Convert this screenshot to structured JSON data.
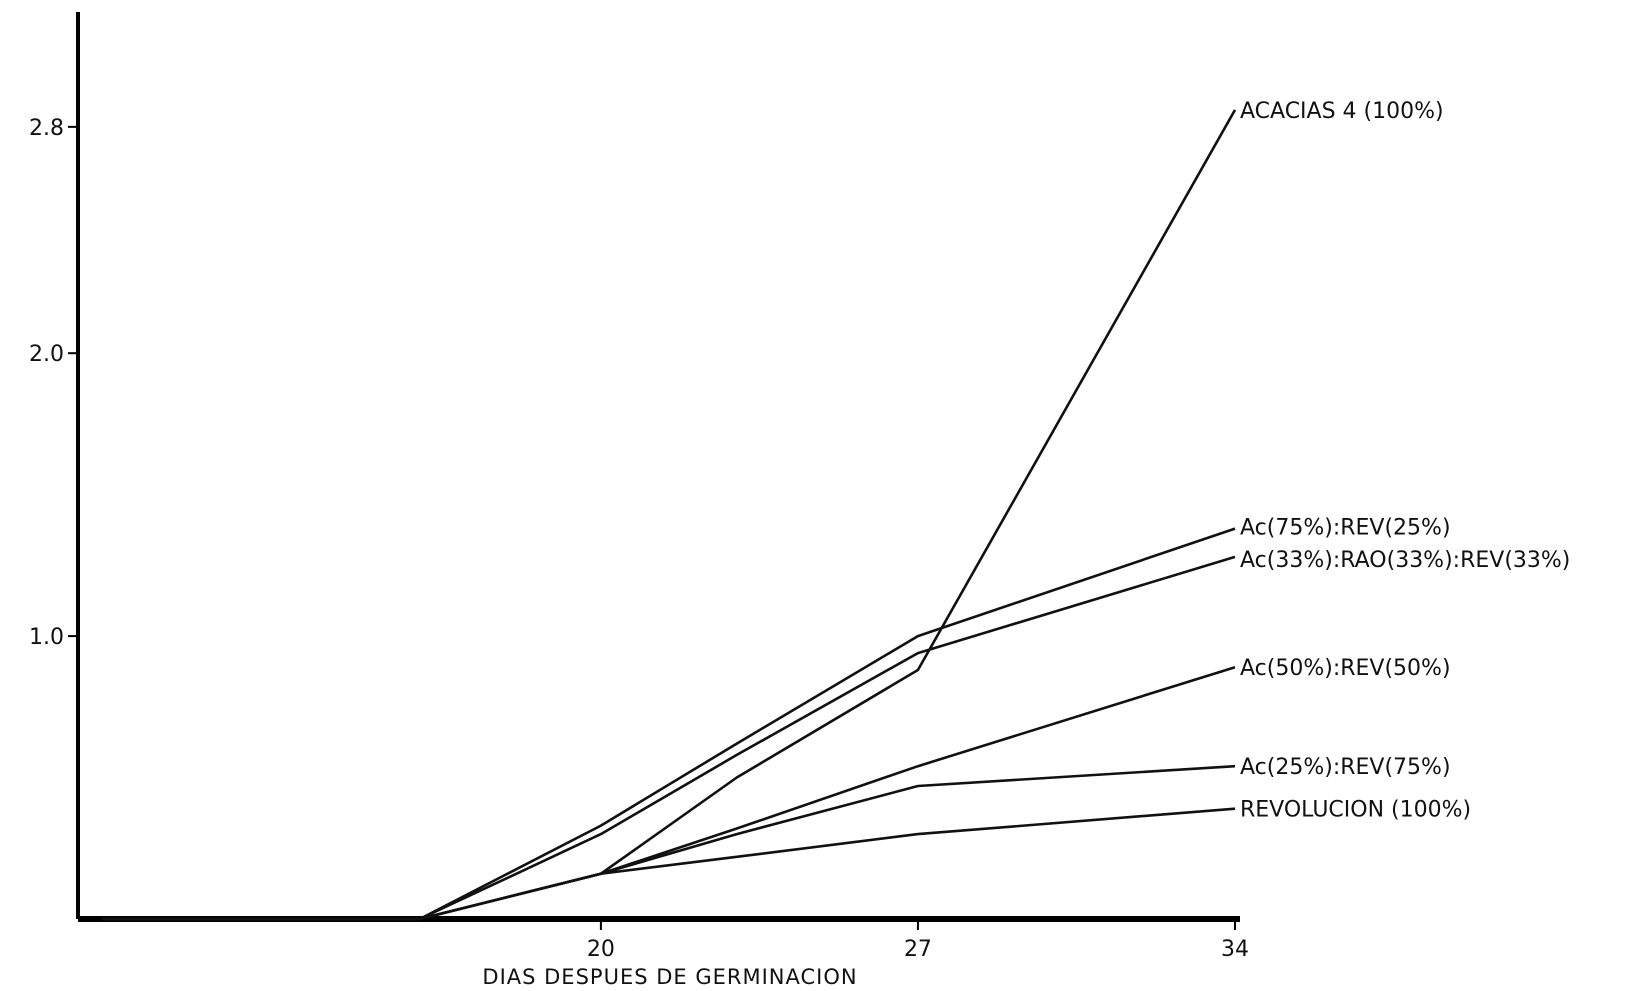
{
  "chart_data": {
    "type": "line",
    "title": "",
    "xlabel": "DIAS DESPUES DE GERMINACION",
    "ylabel": "",
    "x_ticks": [
      "20",
      "27",
      "34"
    ],
    "y_ticks": [
      "1.0",
      "2.0",
      "2.8"
    ],
    "xlim": [
      8.5,
      34
    ],
    "ylim": [
      0,
      3.1
    ],
    "grid": false,
    "legend": "labels at line ends (right)",
    "series": [
      {
        "name": "ACACIAS 4 (100%)",
        "x": [
          9,
          16,
          20,
          23,
          27,
          34
        ],
        "y": [
          0,
          0,
          0.16,
          0.5,
          0.88,
          2.86
        ]
      },
      {
        "name": "Ac(75%):REV(25%)",
        "x": [
          9,
          16,
          20,
          23,
          27,
          34
        ],
        "y": [
          0,
          0,
          0.33,
          0.62,
          1.0,
          1.38
        ]
      },
      {
        "name": "Ac(33%):RAO(33%):REV(33%)",
        "x": [
          9,
          16,
          20,
          23,
          27,
          34
        ],
        "y": [
          0,
          0,
          0.3,
          0.58,
          0.94,
          1.28
        ]
      },
      {
        "name": "Ac(50%):REV(50%)",
        "x": [
          9,
          16,
          20,
          23,
          27,
          34
        ],
        "y": [
          0,
          0,
          0.16,
          0.32,
          0.54,
          0.89
        ]
      },
      {
        "name": "Ac(25%):REV(75%)",
        "x": [
          9,
          16,
          20,
          23,
          27,
          34
        ],
        "y": [
          0,
          0,
          0.16,
          0.3,
          0.47,
          0.54
        ]
      },
      {
        "name": "REVOLUCION (100%)",
        "x": [
          9,
          16,
          20,
          23,
          27,
          34
        ],
        "y": [
          0,
          0,
          0.16,
          0.22,
          0.3,
          0.39
        ]
      }
    ]
  }
}
